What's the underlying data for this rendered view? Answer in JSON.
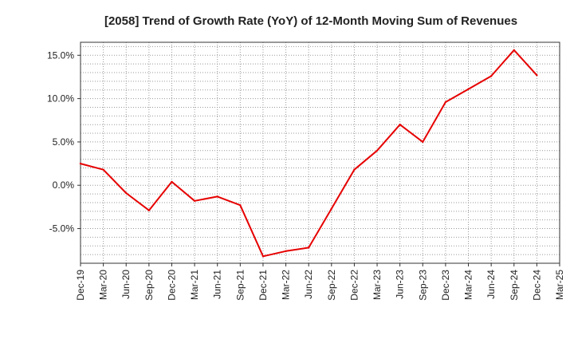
{
  "chart_data": {
    "type": "line",
    "title": "[2058]  Trend of Growth Rate (YoY) of 12-Month Moving Sum of Revenues",
    "xlabel": "",
    "ylabel": "",
    "x_ticks": [
      "Dec-19",
      "Mar-20",
      "Jun-20",
      "Sep-20",
      "Dec-20",
      "Mar-21",
      "Jun-21",
      "Sep-21",
      "Dec-21",
      "Mar-22",
      "Jun-22",
      "Sep-22",
      "Dec-22",
      "Mar-23",
      "Jun-23",
      "Sep-23",
      "Dec-23",
      "Mar-24",
      "Jun-24",
      "Sep-24",
      "Dec-24",
      "Mar-25"
    ],
    "y_ticks": [
      "15.0%",
      "10.0%",
      "5.0%",
      "0.0%",
      "-5.0%"
    ],
    "y_tick_values": [
      15,
      10,
      5,
      0,
      -5
    ],
    "ylim": [
      -9,
      16.5
    ],
    "grid": true,
    "series": [
      {
        "color": "#e60000",
        "x": [
          "Dec-19",
          "Mar-20",
          "Jun-20",
          "Sep-20",
          "Dec-20",
          "Mar-21",
          "Jun-21",
          "Sep-21",
          "Dec-21",
          "Mar-22",
          "Jun-22",
          "Sep-22",
          "Dec-22",
          "Mar-23",
          "Jun-23",
          "Sep-23",
          "Dec-23",
          "Mar-24",
          "Jun-24",
          "Sep-24",
          "Dec-24"
        ],
        "values": [
          2.5,
          1.8,
          -0.9,
          -2.9,
          0.4,
          -1.8,
          -1.3,
          -2.3,
          -8.2,
          -7.6,
          -7.2,
          -2.7,
          1.8,
          4.0,
          7.0,
          5.0,
          9.6,
          11.1,
          12.6,
          15.6,
          12.7
        ]
      }
    ]
  }
}
